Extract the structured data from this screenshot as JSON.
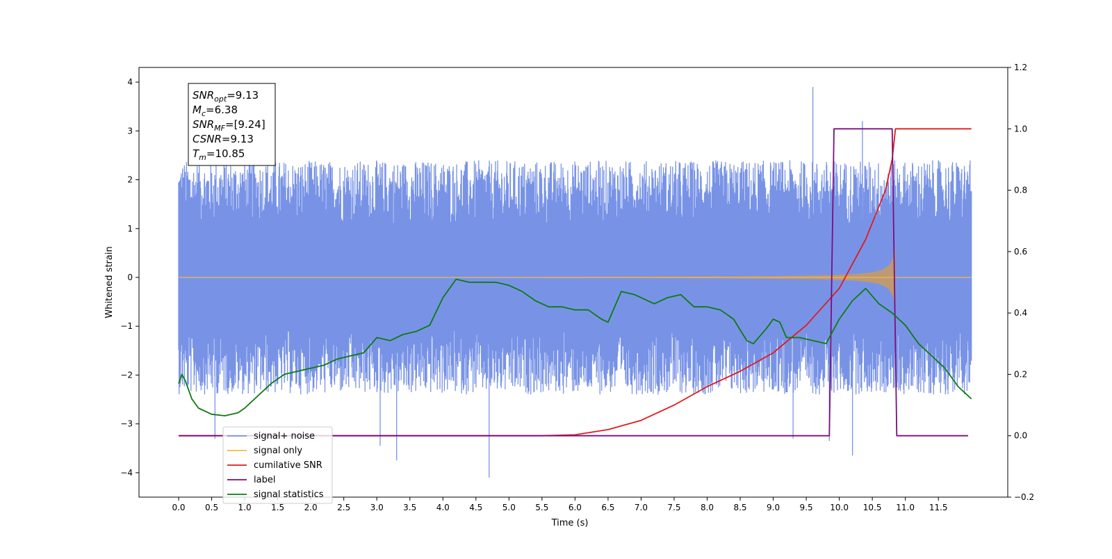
{
  "chart_data": {
    "type": "line",
    "xlabel": "Time (s)",
    "ylabel": "Whitened strain",
    "ylabel_right": "",
    "xlim": [
      -0.6,
      12.55
    ],
    "ylim": [
      -4.5,
      4.3
    ],
    "ylim_right": [
      -0.2,
      1.2
    ],
    "x_ticks": [
      0.0,
      0.5,
      1.0,
      1.5,
      2.0,
      2.5,
      3.0,
      3.5,
      4.0,
      4.5,
      5.0,
      5.5,
      6.0,
      6.5,
      7.0,
      7.5,
      8.0,
      8.5,
      9.0,
      9.5,
      10.0,
      10.5,
      11.0,
      11.5
    ],
    "x_tick_labels": [
      "0.0",
      "0.5",
      "1.0",
      "1.5",
      "2.0",
      "2.5",
      "3.0",
      "3.5",
      "4.0",
      "4.5",
      "5.0",
      "5.5",
      "6.0",
      "6.5",
      "7.0",
      "7.5",
      "8.0",
      "8.5",
      "9.0",
      "9.5",
      "10.0",
      "10.5",
      "11.0",
      "11.5"
    ],
    "y_ticks": [
      4,
      3,
      2,
      1,
      0,
      -1,
      -2,
      -3,
      -4
    ],
    "y_tick_labels": [
      "4",
      "3",
      "2",
      "1",
      "0",
      "−1",
      "−2",
      "−3",
      "−4"
    ],
    "y_right_ticks": [
      1.2,
      1.0,
      0.8,
      0.6,
      0.4,
      0.2,
      0.0,
      -0.2
    ],
    "y_right_tick_labels": [
      "1.2",
      "1.0",
      "0.8",
      "0.6",
      "0.4",
      "0.2",
      "0.0",
      "−0.2"
    ],
    "grid": false,
    "legend_position": "bottom-left",
    "annotation": {
      "lines": [
        {
          "var": "SNR",
          "sub": "opt",
          "text": "=9.13"
        },
        {
          "var": "M",
          "sub": "c",
          "text": "=6.38"
        },
        {
          "var": "SNR",
          "sub": "MF",
          "text": "=[9.24]"
        },
        {
          "var": "CSNR",
          "sub": "",
          "text": "=9.13"
        },
        {
          "var": "T",
          "sub": "m",
          "text": "=10.85"
        }
      ]
    },
    "series": [
      {
        "name": "signal+ noise",
        "axis": "left",
        "color": "#7893e6",
        "kind": "noise",
        "x_range": [
          0.0,
          12.0
        ],
        "envelope_max": 2.4,
        "envelope_min": -2.4,
        "peaks": [
          [
            9.6,
            3.9
          ],
          [
            10.35,
            3.2
          ],
          [
            4.7,
            -4.1
          ],
          [
            3.3,
            -3.75
          ],
          [
            10.2,
            -3.65
          ],
          [
            3.05,
            -3.45
          ],
          [
            0.55,
            -3.3
          ],
          [
            9.3,
            -3.3
          ],
          [
            9.85,
            -3.35
          ]
        ]
      },
      {
        "name": "signal only",
        "axis": "left",
        "color": "#f5b84a",
        "kind": "chirp",
        "fill_color": "#bd9a72",
        "chirp_start": 5.5,
        "merger_time": 10.85,
        "end_time": 12.0,
        "amplitude_at_merger": 0.6
      },
      {
        "name": "cumilative SNR",
        "axis": "right",
        "color": "#e0191c",
        "points": [
          [
            0.0,
            0.0
          ],
          [
            5.5,
            0.0
          ],
          [
            6.0,
            0.003
          ],
          [
            6.5,
            0.02
          ],
          [
            7.0,
            0.05
          ],
          [
            7.5,
            0.1
          ],
          [
            8.0,
            0.16
          ],
          [
            8.5,
            0.21
          ],
          [
            9.0,
            0.27
          ],
          [
            9.5,
            0.36
          ],
          [
            10.0,
            0.48
          ],
          [
            10.4,
            0.64
          ],
          [
            10.7,
            0.8
          ],
          [
            10.8,
            0.9
          ],
          [
            10.85,
            1.0
          ],
          [
            12.0,
            1.0
          ]
        ]
      },
      {
        "name": "label",
        "axis": "right",
        "color": "#7a0e7c",
        "points": [
          [
            0.0,
            0.0
          ],
          [
            9.85,
            0.0
          ],
          [
            9.92,
            1.0
          ],
          [
            10.8,
            1.0
          ],
          [
            10.87,
            0.0
          ],
          [
            11.95,
            0.0
          ]
        ]
      },
      {
        "name": "signal statistics",
        "axis": "right",
        "color": "#0d7a10",
        "points": [
          [
            0.0,
            0.17
          ],
          [
            0.05,
            0.2
          ],
          [
            0.1,
            0.18
          ],
          [
            0.2,
            0.12
          ],
          [
            0.3,
            0.09
          ],
          [
            0.5,
            0.07
          ],
          [
            0.7,
            0.065
          ],
          [
            0.9,
            0.075
          ],
          [
            1.0,
            0.09
          ],
          [
            1.2,
            0.13
          ],
          [
            1.4,
            0.17
          ],
          [
            1.6,
            0.2
          ],
          [
            1.8,
            0.21
          ],
          [
            2.0,
            0.22
          ],
          [
            2.2,
            0.23
          ],
          [
            2.4,
            0.25
          ],
          [
            2.6,
            0.26
          ],
          [
            2.8,
            0.27
          ],
          [
            3.0,
            0.32
          ],
          [
            3.2,
            0.31
          ],
          [
            3.4,
            0.33
          ],
          [
            3.6,
            0.34
          ],
          [
            3.8,
            0.36
          ],
          [
            4.0,
            0.45
          ],
          [
            4.1,
            0.48
          ],
          [
            4.2,
            0.51
          ],
          [
            4.4,
            0.5
          ],
          [
            4.6,
            0.5
          ],
          [
            4.8,
            0.5
          ],
          [
            5.0,
            0.49
          ],
          [
            5.2,
            0.47
          ],
          [
            5.4,
            0.44
          ],
          [
            5.6,
            0.42
          ],
          [
            5.8,
            0.42
          ],
          [
            6.0,
            0.41
          ],
          [
            6.2,
            0.41
          ],
          [
            6.4,
            0.38
          ],
          [
            6.5,
            0.37
          ],
          [
            6.6,
            0.42
          ],
          [
            6.7,
            0.47
          ],
          [
            6.9,
            0.46
          ],
          [
            7.0,
            0.45
          ],
          [
            7.2,
            0.43
          ],
          [
            7.4,
            0.45
          ],
          [
            7.6,
            0.46
          ],
          [
            7.8,
            0.42
          ],
          [
            8.0,
            0.42
          ],
          [
            8.2,
            0.41
          ],
          [
            8.4,
            0.38
          ],
          [
            8.6,
            0.31
          ],
          [
            8.7,
            0.3
          ],
          [
            8.9,
            0.35
          ],
          [
            9.0,
            0.38
          ],
          [
            9.1,
            0.37
          ],
          [
            9.2,
            0.32
          ],
          [
            9.4,
            0.32
          ],
          [
            9.6,
            0.31
          ],
          [
            9.8,
            0.3
          ],
          [
            10.0,
            0.38
          ],
          [
            10.2,
            0.44
          ],
          [
            10.4,
            0.48
          ],
          [
            10.6,
            0.43
          ],
          [
            10.8,
            0.4
          ],
          [
            11.0,
            0.36
          ],
          [
            11.2,
            0.3
          ],
          [
            11.4,
            0.26
          ],
          [
            11.6,
            0.22
          ],
          [
            11.8,
            0.16
          ],
          [
            12.0,
            0.12
          ]
        ]
      }
    ],
    "legend": [
      {
        "label": "signal+ noise",
        "color": "#7893e6"
      },
      {
        "label": "signal only",
        "color": "#f5b84a"
      },
      {
        "label": "cumilative SNR",
        "color": "#e0191c"
      },
      {
        "label": "label",
        "color": "#7a0e7c"
      },
      {
        "label": "signal statistics",
        "color": "#0d7a10"
      }
    ]
  }
}
